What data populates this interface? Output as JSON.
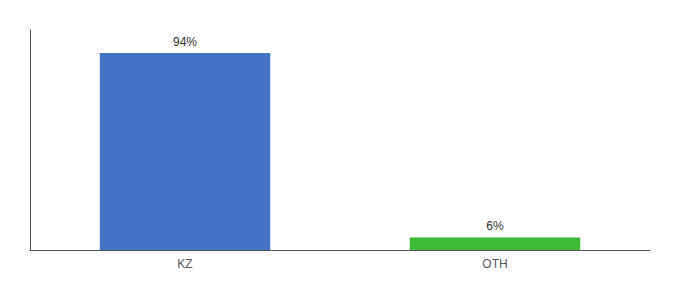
{
  "chart_data": {
    "type": "bar",
    "categories": [
      "KZ",
      "OTH"
    ],
    "values": [
      94,
      6
    ],
    "value_labels": [
      "94%",
      "6%"
    ],
    "colors": [
      "#4472c4",
      "#3dbb35"
    ],
    "ylim": [
      0,
      105
    ],
    "data_labels": true,
    "tick_labels": "x",
    "grid": false
  }
}
